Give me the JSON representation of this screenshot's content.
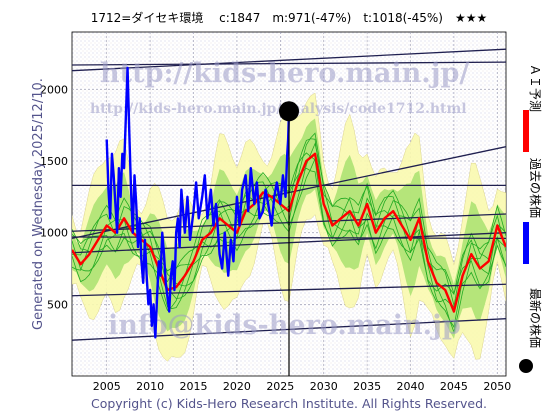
{
  "title": "1712=ダイセキ環境　 c:1847　m:971(-47%)　t:1018(-45%)　★★★",
  "watermark_url": "http://kids-hero.main.jp/",
  "watermark_analysis": "http://kids-hero.main.jp/analysis/code1712.html",
  "watermark_email": "info@kids-hero.main.jp",
  "generated": "Generated on Wednesday 2025/12/10.",
  "copyright": "Copyright (c) Kids-Hero Research Institute. All Rights Reserved.",
  "legend": {
    "ai": "ＡＩ予測",
    "past": "過去の株価",
    "latest": "最新の株価"
  },
  "colors": {
    "ai": "#ff0000",
    "past": "#0000ff",
    "latest": "#000000",
    "band_outer": "#fafab0",
    "band_inner": "#a8e070",
    "band_line": "#22aa22",
    "trend": "#202050"
  },
  "chart_data": {
    "type": "line",
    "xlim": [
      2001,
      2051
    ],
    "ylim": [
      0,
      2400
    ],
    "x_ticks": [
      2005,
      2010,
      2015,
      2020,
      2025,
      2030,
      2035,
      2040,
      2045,
      2050
    ],
    "y_ticks": [
      500,
      1000,
      1500,
      2000
    ],
    "grid": true,
    "latest_point": {
      "x": 2026.0,
      "y": 1847
    },
    "series": [
      {
        "name": "過去の株価",
        "x": [
          2005.0,
          2005.2,
          2005.4,
          2005.6,
          2005.8,
          2006.0,
          2006.2,
          2006.4,
          2006.6,
          2006.8,
          2007.0,
          2007.2,
          2007.4,
          2007.6,
          2007.8,
          2008.0,
          2008.2,
          2008.4,
          2008.6,
          2008.8,
          2009.0,
          2009.2,
          2009.4,
          2009.6,
          2009.8,
          2010.0,
          2010.2,
          2010.4,
          2010.6,
          2010.8,
          2011.0,
          2011.2,
          2011.4,
          2011.6,
          2011.8,
          2012.0,
          2012.2,
          2012.4,
          2012.6,
          2012.8,
          2013.0,
          2013.2,
          2013.4,
          2013.6,
          2013.8,
          2014.0,
          2014.3,
          2014.6,
          2015.0,
          2015.3,
          2015.6,
          2016.0,
          2016.3,
          2016.6,
          2017.0,
          2017.3,
          2017.6,
          2018.0,
          2018.3,
          2018.6,
          2019.0,
          2019.3,
          2019.6,
          2020.0,
          2020.3,
          2020.6,
          2021.0,
          2021.3,
          2021.6,
          2022.0,
          2022.3,
          2022.6,
          2023.0,
          2023.3,
          2023.6,
          2024.0,
          2024.3,
          2024.6,
          2025.0,
          2025.3,
          2025.6,
          2025.8,
          2025.9,
          2026.0
        ],
        "y": [
          1650,
          1300,
          1100,
          1550,
          1400,
          1200,
          1000,
          1450,
          1250,
          1550,
          1450,
          1800,
          2150,
          1700,
          1300,
          1000,
          1400,
          1200,
          900,
          1100,
          800,
          650,
          950,
          700,
          500,
          600,
          350,
          500,
          270,
          550,
          800,
          700,
          1000,
          850,
          650,
          550,
          450,
          700,
          800,
          600,
          1000,
          1100,
          900,
          1300,
          1150,
          1000,
          1250,
          950,
          1150,
          1350,
          1100,
          1250,
          1400,
          1100,
          1300,
          1050,
          1200,
          850,
          750,
          1000,
          700,
          950,
          800,
          1250,
          1050,
          1300,
          1400,
          1150,
          1450,
          1200,
          1350,
          1100,
          1150,
          1300,
          1200,
          1050,
          1250,
          1350,
          1200,
          1400,
          1250,
          1550,
          1650,
          1847
        ]
      },
      {
        "name": "ＡＩ予測",
        "x": [
          2001,
          2002,
          2003,
          2004,
          2005,
          2006,
          2007,
          2008,
          2009,
          2010,
          2011,
          2012,
          2013,
          2014,
          2015,
          2016,
          2017,
          2018,
          2019,
          2020,
          2021,
          2022,
          2023,
          2024,
          2025,
          2026,
          2027,
          2028,
          2029,
          2030,
          2031,
          2032,
          2033,
          2034,
          2035,
          2036,
          2037,
          2038,
          2039,
          2040,
          2041,
          2042,
          2043,
          2044,
          2045,
          2046,
          2047,
          2048,
          2049,
          2050,
          2051
        ],
        "y": [
          880,
          780,
          850,
          950,
          1050,
          1000,
          1100,
          1000,
          950,
          900,
          750,
          600,
          620,
          700,
          800,
          950,
          1000,
          1100,
          1050,
          1000,
          1150,
          1200,
          1280,
          1250,
          1200,
          1150,
          1350,
          1500,
          1550,
          1200,
          1050,
          1100,
          1150,
          1050,
          1200,
          1000,
          1100,
          1150,
          1050,
          950,
          1100,
          800,
          650,
          600,
          450,
          700,
          850,
          750,
          800,
          1050,
          900
        ]
      }
    ]
  }
}
